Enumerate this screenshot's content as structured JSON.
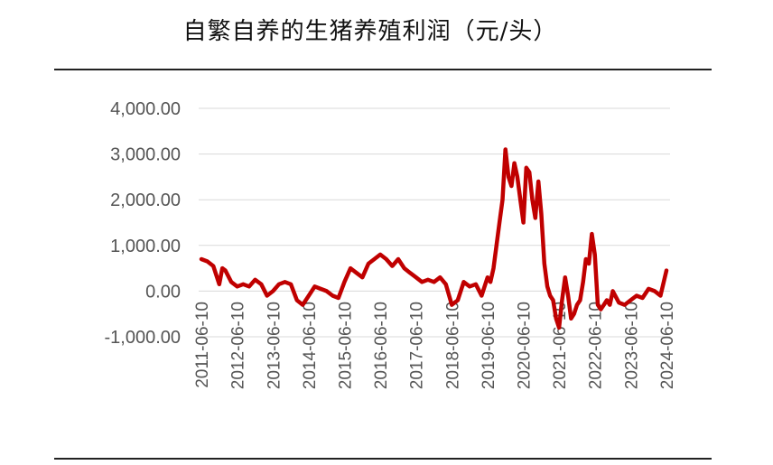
{
  "chart_data": {
    "type": "line",
    "title": "自繁自养的生猪养殖利润（元/头）",
    "xlabel": "",
    "ylabel": "",
    "ylim": [
      -1000,
      4000
    ],
    "yticks": [
      -1000,
      0,
      1000,
      2000,
      3000,
      4000
    ],
    "ytick_labels": [
      "-1,000.00",
      "0.00",
      "1,000.00",
      "2,000.00",
      "3,000.00",
      "4,000.00"
    ],
    "xticks": [
      "2011-06-10",
      "2012-06-10",
      "2013-06-10",
      "2014-06-10",
      "2015-06-10",
      "2016-06-10",
      "2017-06-10",
      "2018-06-10",
      "2019-06-10",
      "2020-06-10",
      "2021-06-10",
      "2022-06-10",
      "2023-06-10",
      "2024-06-10"
    ],
    "grid": true,
    "legend": "none",
    "series": [
      {
        "color": "#c00000",
        "x": [
          "2011-06-10",
          "2011-08-10",
          "2011-10-10",
          "2011-12-10",
          "2012-01-10",
          "2012-02-10",
          "2012-04-10",
          "2012-06-10",
          "2012-08-10",
          "2012-10-10",
          "2012-12-10",
          "2013-02-10",
          "2013-04-10",
          "2013-06-10",
          "2013-08-10",
          "2013-10-10",
          "2013-12-10",
          "2014-02-10",
          "2014-04-10",
          "2014-06-10",
          "2014-08-10",
          "2014-10-10",
          "2014-12-10",
          "2015-02-10",
          "2015-04-10",
          "2015-06-10",
          "2015-08-10",
          "2015-10-10",
          "2015-12-10",
          "2016-02-10",
          "2016-04-10",
          "2016-06-10",
          "2016-08-10",
          "2016-10-10",
          "2016-12-10",
          "2017-02-10",
          "2017-04-10",
          "2017-06-10",
          "2017-08-10",
          "2017-10-10",
          "2017-12-10",
          "2018-02-10",
          "2018-04-10",
          "2018-06-10",
          "2018-08-10",
          "2018-10-10",
          "2018-12-10",
          "2019-02-10",
          "2019-04-10",
          "2019-06-10",
          "2019-07-10",
          "2019-08-10",
          "2019-09-10",
          "2019-10-10",
          "2019-11-10",
          "2019-12-10",
          "2020-01-10",
          "2020-02-10",
          "2020-03-10",
          "2020-04-10",
          "2020-05-10",
          "2020-06-10",
          "2020-07-10",
          "2020-08-10",
          "2020-09-10",
          "2020-10-10",
          "2020-11-10",
          "2020-12-10",
          "2021-01-10",
          "2021-02-10",
          "2021-03-10",
          "2021-04-10",
          "2021-05-10",
          "2021-06-10",
          "2021-07-10",
          "2021-08-10",
          "2021-09-10",
          "2021-10-10",
          "2021-11-10",
          "2021-12-10",
          "2022-01-10",
          "2022-02-10",
          "2022-03-10",
          "2022-04-10",
          "2022-05-10",
          "2022-06-10",
          "2022-07-10",
          "2022-08-10",
          "2022-09-10",
          "2022-10-10",
          "2022-11-10",
          "2022-12-10",
          "2023-02-10",
          "2023-04-10",
          "2023-06-10",
          "2023-08-10",
          "2023-10-10",
          "2023-12-10",
          "2024-02-10",
          "2024-04-10",
          "2024-06-10"
        ],
        "y": [
          700,
          650,
          550,
          150,
          500,
          450,
          200,
          100,
          150,
          100,
          250,
          150,
          -100,
          0,
          150,
          200,
          150,
          -200,
          -300,
          -100,
          100,
          50,
          0,
          -100,
          -150,
          200,
          500,
          400,
          300,
          600,
          700,
          800,
          700,
          550,
          700,
          500,
          400,
          300,
          200,
          250,
          200,
          300,
          150,
          -300,
          -200,
          200,
          100,
          150,
          -100,
          300,
          200,
          500,
          1000,
          1500,
          2000,
          3100,
          2500,
          2300,
          2800,
          2500,
          2000,
          1500,
          2700,
          2600,
          2000,
          1600,
          2400,
          1700,
          600,
          100,
          -100,
          -200,
          -600,
          -800,
          -200,
          300,
          -100,
          -600,
          -500,
          -300,
          -200,
          200,
          700,
          600,
          1250,
          800,
          -300,
          -400,
          -300,
          -200,
          -300,
          0,
          -250,
          -300,
          -200,
          -100,
          -150,
          50,
          0,
          -100,
          450
        ]
      }
    ]
  }
}
